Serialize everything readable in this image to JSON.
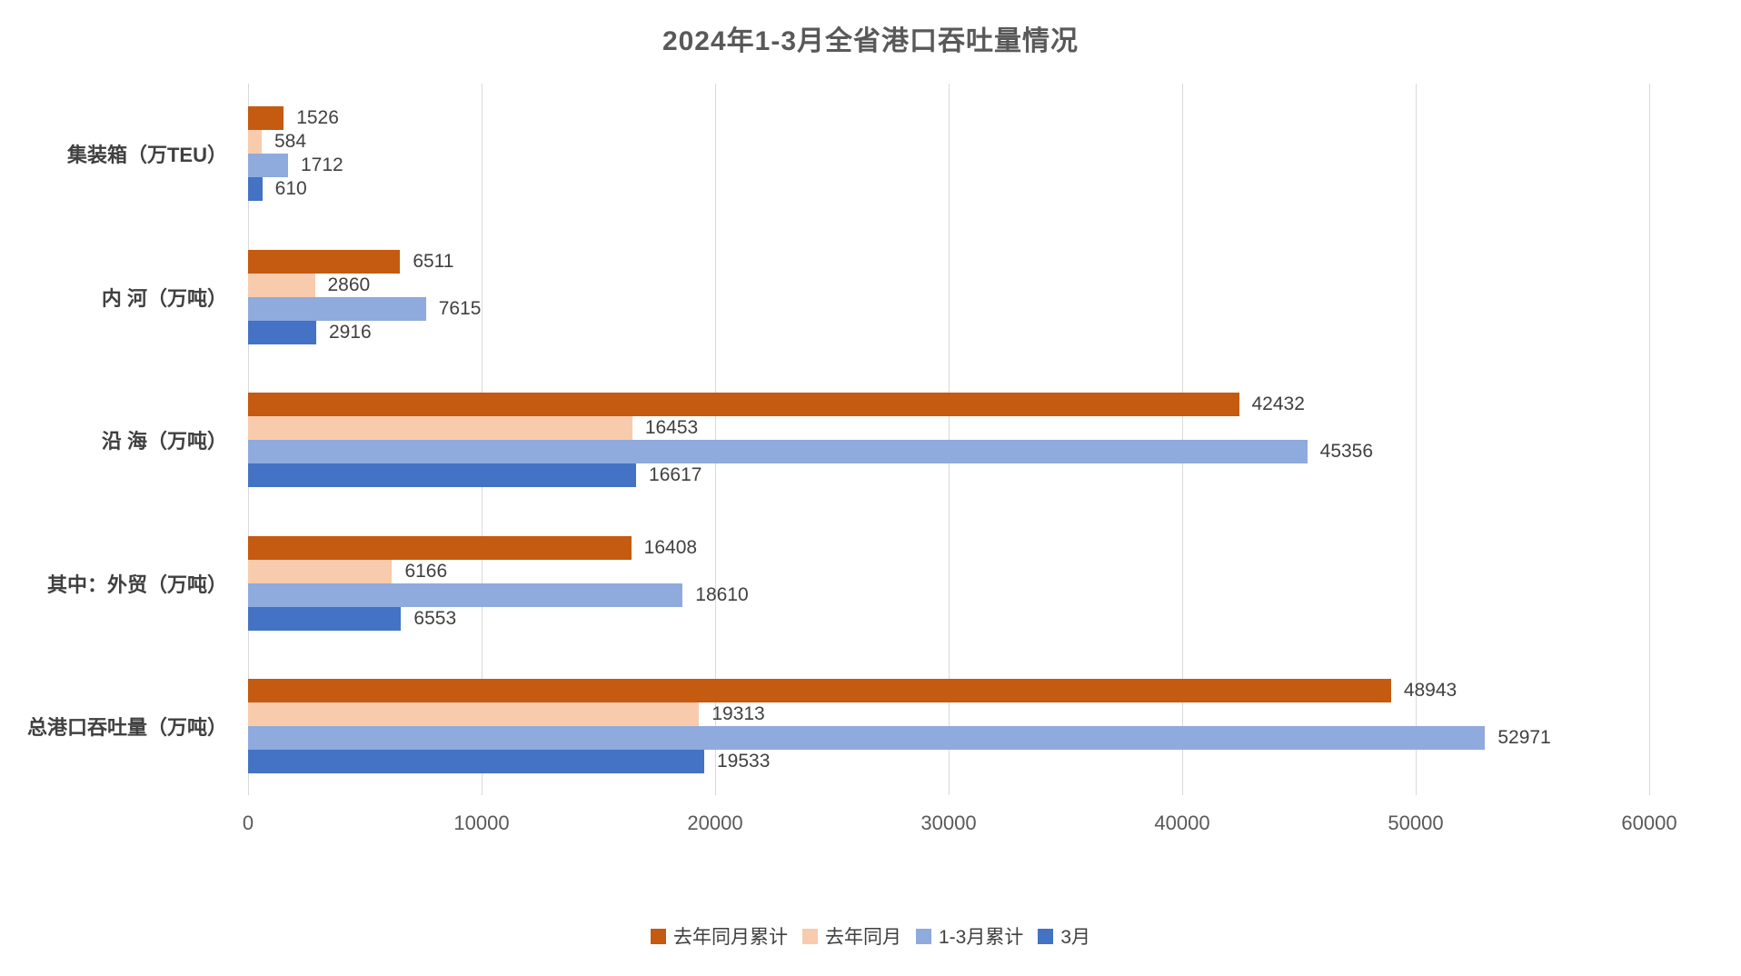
{
  "title": "2024年1-3月全省港口吞吐量情况",
  "colors": {
    "title_text": "#595959",
    "label_text": "#404040",
    "axis_text": "#595959",
    "gridline": "#d9d9d9",
    "series": [
      "#C55A11",
      "#F8CBAD",
      "#8FAADC",
      "#4472C4"
    ]
  },
  "chart_data": {
    "type": "bar",
    "orientation": "horizontal",
    "title": "2024年1-3月全省港口吞吐量情况",
    "categories": [
      "集装箱（万TEU）",
      "内 河（万吨）",
      "沿 海（万吨）",
      "其中：外贸（万吨）",
      "总港口吞吐量（万吨）"
    ],
    "series": [
      {
        "name": "去年同月累计",
        "color": "#C55A11",
        "values": [
          1526,
          6511,
          42432,
          16408,
          48943
        ]
      },
      {
        "name": "去年同月",
        "color": "#F8CBAD",
        "values": [
          584,
          2860,
          16453,
          6166,
          19313
        ]
      },
      {
        "name": "1-3月累计",
        "color": "#8FAADC",
        "values": [
          1712,
          7615,
          45356,
          18610,
          52971
        ]
      },
      {
        "name": "3月",
        "color": "#4472C4",
        "values": [
          610,
          2916,
          16617,
          6553,
          19533
        ]
      }
    ],
    "x_axis": {
      "min": 0,
      "max": 60000,
      "tick_interval": 10000,
      "tick_labels": [
        "0",
        "10000",
        "20000",
        "30000",
        "40000",
        "50000",
        "60000"
      ]
    },
    "grid": true,
    "data_labels": true,
    "legend_position": "bottom"
  }
}
